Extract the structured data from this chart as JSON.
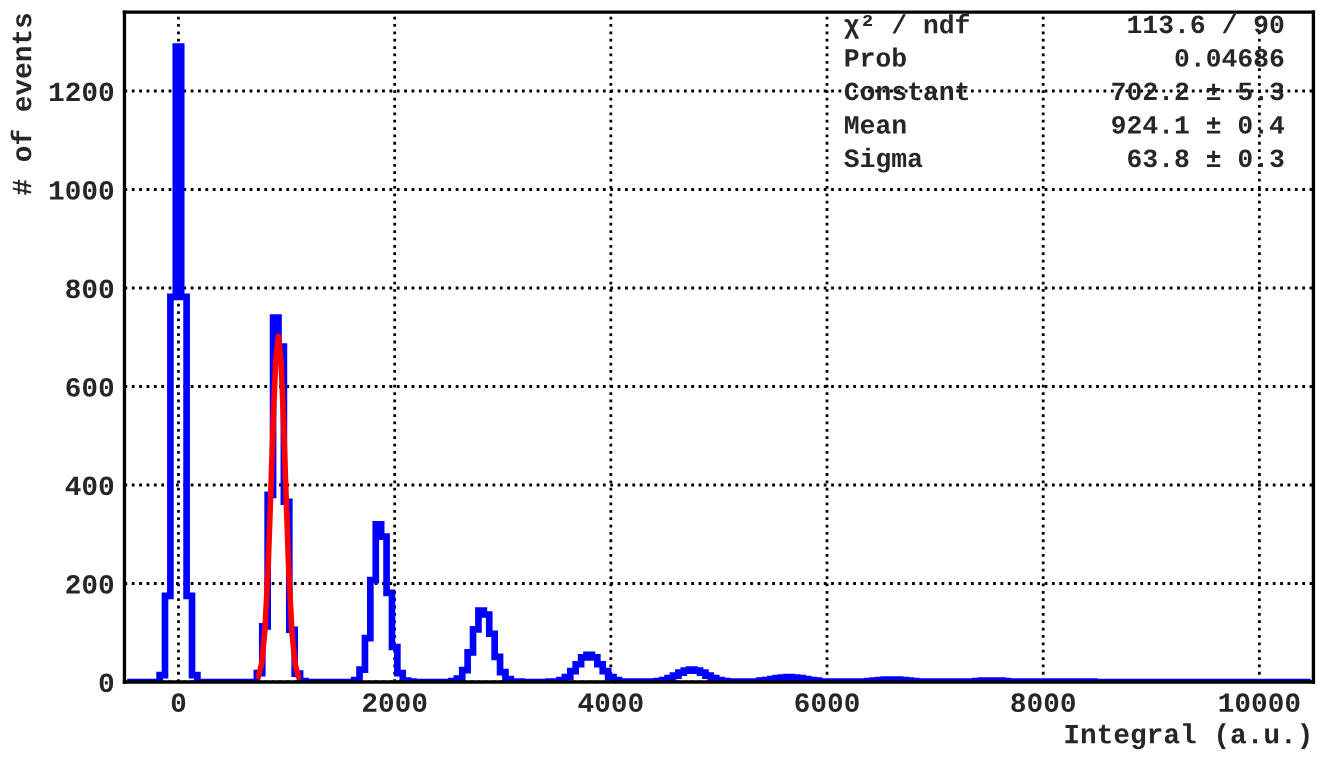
{
  "chart_data": {
    "type": "histogram",
    "xlabel": "Integral (a.u.)",
    "ylabel": "# of events",
    "bins": [
      -475,
      -425,
      -375,
      -325,
      -275,
      -225,
      -175,
      -125,
      -75,
      -25,
      25,
      75,
      125,
      175,
      225,
      275,
      325,
      375,
      425,
      475,
      525,
      575,
      625,
      675,
      725,
      775,
      825,
      875,
      925,
      975,
      1025,
      1075,
      1125,
      1175,
      1225,
      1275,
      1325,
      1375,
      1425,
      1475,
      1525,
      1575,
      1625,
      1675,
      1725,
      1775,
      1825,
      1875,
      1925,
      1975,
      2025,
      2075,
      2125,
      2175,
      2225,
      2275,
      2325,
      2375,
      2425,
      2475,
      2525,
      2575,
      2625,
      2675,
      2725,
      2775,
      2825,
      2875,
      2925,
      2975,
      3025,
      3075,
      3125,
      3175,
      3225,
      3275,
      3325,
      3375,
      3425,
      3475,
      3525,
      3575,
      3625,
      3675,
      3725,
      3775,
      3825,
      3875,
      3925,
      3975,
      4025,
      4075,
      4125,
      4175,
      4225,
      4275,
      4325,
      4375,
      4425,
      4475,
      4525,
      4575,
      4625,
      4675,
      4725,
      4775,
      4825,
      4875,
      4925,
      4975,
      5025,
      5075,
      5125,
      5175,
      5225,
      5275,
      5325,
      5375,
      5425,
      5475,
      5525,
      5575,
      5625,
      5675,
      5725,
      5775,
      5825,
      5875,
      5925,
      5975,
      6025,
      6075,
      6125,
      6175,
      6225,
      6275,
      6325,
      6375,
      6425,
      6475,
      6525,
      6575,
      6625,
      6675,
      6725,
      6775,
      6825,
      6875,
      6925,
      6975,
      7025,
      7075,
      7125,
      7175,
      7225,
      7275,
      7325,
      7375,
      7425,
      7475,
      7525,
      7575,
      7625,
      7675,
      7725,
      7775,
      7825,
      7875,
      7925,
      7975,
      8025,
      8075,
      8125,
      8175,
      8225,
      8275,
      8325,
      8375,
      8425,
      8475,
      8525,
      8575,
      8625,
      8675,
      8725,
      8775,
      8825,
      8875,
      8925,
      8975,
      9025,
      9075,
      9125,
      9175,
      9225,
      9275,
      9325,
      9375,
      9425,
      9475,
      9525,
      9575,
      9625,
      9675,
      9725,
      9775,
      9825,
      9875,
      9925,
      9975,
      10025,
      10075,
      10125,
      10175,
      10225,
      10275,
      10325,
      10375,
      10425,
      10475
    ],
    "values": [
      0,
      0,
      0,
      0,
      0,
      0,
      14,
      175,
      782,
      1290,
      782,
      175,
      14,
      0,
      0,
      0,
      0,
      0,
      0,
      0,
      0,
      0,
      0,
      0,
      18,
      113,
      380,
      740,
      681,
      366,
      106,
      17,
      2,
      0,
      0,
      0,
      0,
      0,
      0,
      0,
      0,
      0,
      4,
      25,
      89,
      207,
      320,
      295,
      181,
      71,
      18,
      3,
      1,
      0,
      0,
      0,
      0,
      0,
      0,
      0,
      2,
      7,
      24,
      60,
      107,
      145,
      137,
      98,
      51,
      20,
      6,
      1,
      1,
      0,
      0,
      0,
      0,
      0,
      1,
      1,
      4,
      10,
      22,
      36,
      50,
      55,
      50,
      36,
      22,
      10,
      4,
      1,
      1,
      1,
      1,
      1,
      1,
      0,
      2,
      4,
      8,
      13,
      19,
      23,
      25,
      23,
      19,
      13,
      8,
      4,
      2,
      1,
      1,
      1,
      1,
      1,
      1,
      3,
      4,
      6,
      8,
      9,
      10,
      9,
      8,
      6,
      4,
      3,
      1,
      1,
      1,
      1,
      1,
      1,
      1,
      1,
      1,
      2,
      3,
      4,
      5,
      5,
      5,
      4,
      3,
      2,
      1,
      1,
      1,
      1,
      1,
      1,
      1,
      1,
      1,
      1,
      1,
      2,
      3,
      3,
      3,
      3,
      2,
      1,
      1,
      1,
      1,
      1,
      1,
      1,
      1,
      1,
      1,
      1,
      1,
      1,
      1,
      1,
      1,
      0,
      0,
      0,
      0,
      0,
      0,
      0,
      0,
      0,
      0,
      0,
      0,
      0,
      0,
      0,
      0,
      0,
      0,
      0,
      0,
      0,
      0,
      0,
      0,
      0,
      0,
      0,
      0,
      0,
      0,
      0,
      0,
      0,
      0,
      0,
      0,
      0,
      0,
      0,
      0
    ],
    "color": "#0000ff",
    "series": [
      {
        "type": "line",
        "color": "#ff0000",
        "x": [
          740,
          770,
          800,
          830,
          860,
          880,
          900,
          924,
          950,
          970,
          990,
          1020,
          1050,
          1080,
          1110
        ],
        "values": [
          11,
          38,
          106,
          236,
          424,
          553,
          654,
          702,
          647,
          542,
          412,
          227,
          100,
          35,
          10
        ]
      }
    ],
    "xlim": [
      -500,
      10500
    ],
    "ylim": [
      0,
      1360
    ],
    "xticks": [
      0,
      2000,
      4000,
      6000,
      8000,
      10000
    ],
    "yticks": [
      0,
      200,
      400,
      600,
      800,
      1000,
      1200
    ],
    "grid": true,
    "line_style": "solid",
    "annotations": [
      "χ² / ndf",
      "113.6 / 90",
      "Prob",
      "0.04686",
      "Constant",
      "702.2 ± 5.3",
      "Mean",
      "924.1 ± 0.4",
      "Sigma",
      "63.8 ± 0.3"
    ]
  }
}
